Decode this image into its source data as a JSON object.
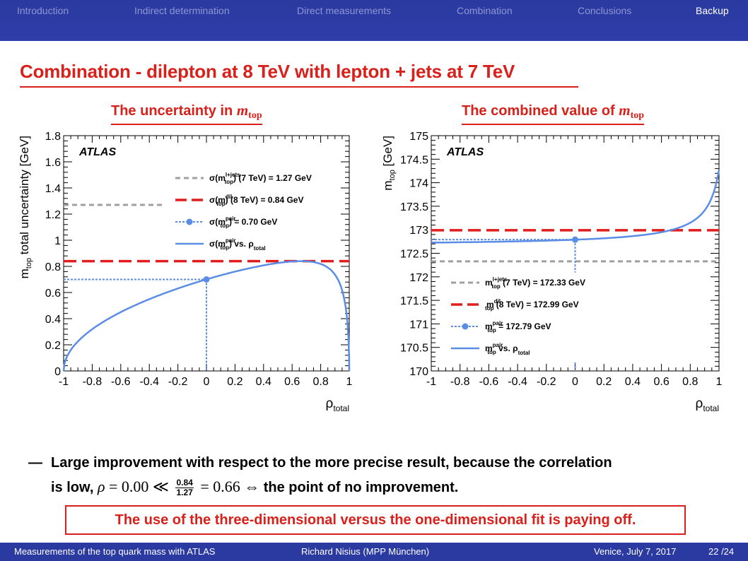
{
  "nav": {
    "items": [
      "Introduction",
      "Indirect determination",
      "Direct measurements",
      "Combination",
      "Conclusions",
      "Backup"
    ],
    "active": "Backup"
  },
  "title": "Combination - dilepton at 8 TeV with lepton + jets at 7 TeV",
  "left_panel": {
    "heading_text": "The uncertainty in ",
    "heading_symbol": "m",
    "heading_sub": "top"
  },
  "right_panel": {
    "heading_text": "The combined value of ",
    "heading_symbol": "m",
    "heading_sub": "top"
  },
  "chart_data": [
    {
      "type": "line",
      "experiment": "ATLAS",
      "ylabel_main": "m",
      "ylabel_sub": "top",
      "ylabel_rest": " total uncertainty [GeV]",
      "xlabel_main": "ρ",
      "xlabel_sub": "total",
      "xlim": [
        -1,
        1
      ],
      "ylim": [
        0,
        1.8
      ],
      "x_ticks": [
        "-1",
        "-0.8",
        "-0.6",
        "-0.4",
        "-0.2",
        "0",
        "0.2",
        "0.4",
        "0.6",
        "0.8",
        "1"
      ],
      "y_ticks": [
        "0",
        "0.2",
        "0.4",
        "0.6",
        "0.8",
        "1",
        "1.2",
        "1.4",
        "1.6",
        "1.8"
      ],
      "inputs": {
        "sigma_ljets_7TeV": 1.27,
        "sigma_dil_8TeV": 0.84,
        "sigma_pair": 0.7,
        "rho_pair": 0.0
      },
      "legend": [
        {
          "style": "grey-dashed",
          "main": "σ(m",
          "sup": "l+jets",
          "sub": "top",
          "rest": ") (7 TeV) = 1.27 GeV"
        },
        {
          "style": "red-dashed",
          "main": "σ(m",
          "sup": "dil",
          "sub": "top",
          "rest": ") (8 TeV)   = 0.84 GeV"
        },
        {
          "style": "blue-dotted-marker",
          "main": "σ(m",
          "sup": "pair",
          "sub": "top",
          "rest": ") = 0.70 GeV"
        },
        {
          "style": "blue-solid",
          "main": "σ(m",
          "sup": "pair",
          "sub": "top",
          "rest": ") vs. ρ",
          "rest_sub": "total"
        }
      ],
      "colors": {
        "ljets": "#a0a0a0",
        "dil": "#e11d1d",
        "pair": "#5a8de6"
      }
    },
    {
      "type": "line",
      "experiment": "ATLAS",
      "ylabel_main": "m",
      "ylabel_sub": "top",
      "ylabel_rest": " [GeV]",
      "xlabel_main": "ρ",
      "xlabel_sub": "total",
      "xlim": [
        -1,
        1
      ],
      "ylim": [
        170,
        175
      ],
      "x_ticks": [
        "-1",
        "-0.8",
        "-0.6",
        "-0.4",
        "-0.2",
        "0",
        "0.2",
        "0.4",
        "0.6",
        "0.8",
        "1"
      ],
      "y_ticks": [
        "170",
        "170.5",
        "171",
        "171.5",
        "172",
        "172.5",
        "173",
        "173.5",
        "174",
        "174.5",
        "175"
      ],
      "inputs": {
        "m_ljets_7TeV": 172.33,
        "m_dil_8TeV": 172.99,
        "m_pair": 172.79,
        "rho_pair": 0.0
      },
      "legend": [
        {
          "style": "grey-dashed",
          "main": "m",
          "sup": "l+jets",
          "sub": "top",
          "rest": " (7 TeV)  = 172.33 GeV"
        },
        {
          "style": "red-dashed",
          "main": "m",
          "sup": "dil",
          "sub": "top",
          "rest": " (8 TeV)    = 172.99 GeV"
        },
        {
          "style": "blue-dotted-marker",
          "main": "m",
          "sup": "pair",
          "sub": "top",
          "rest": " = 172.79 GeV"
        },
        {
          "style": "blue-solid",
          "main": "m",
          "sup": "pair",
          "sub": "top",
          "rest": " vs. ρ",
          "rest_sub": "total"
        }
      ],
      "colors": {
        "ljets": "#a0a0a0",
        "dil": "#e11d1d",
        "pair": "#5a8de6"
      }
    }
  ],
  "bullet": {
    "dash": "—",
    "line1": "Large improvement with respect to the more precise result, because the correlation",
    "line2_a": "is low, ",
    "rho": "ρ",
    "eq1": " = 0.00 ≪ ",
    "frac_num": "0.84",
    "frac_den": "1.27",
    "eq2": " = 0.66 ⇔ ",
    "line2_b": "the point of no improvement."
  },
  "callout": "The use of the three-dimensional versus the one-dimensional fit is paying off.",
  "footer": {
    "left": "Measurements of the top quark mass with ATLAS",
    "center": "Richard Nisius  (MPP München)",
    "date": "Venice, July 7, 2017",
    "page": "22 /24"
  }
}
